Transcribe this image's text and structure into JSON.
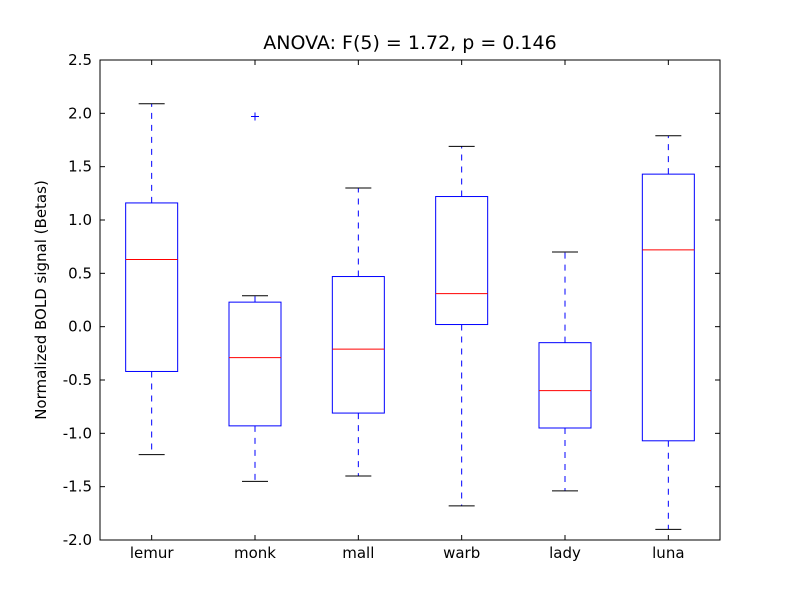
{
  "chart_data": {
    "type": "boxplot",
    "title": "ANOVA: F(5) = 1.72, p = 0.146",
    "xlabel": "",
    "ylabel": "Normalized BOLD signal (Betas)",
    "ylim": [
      -2.0,
      2.5
    ],
    "yticks": [
      "-2.0",
      "-1.5",
      "-1.0",
      "-0.5",
      "0.0",
      "0.5",
      "1.0",
      "1.5",
      "2.0",
      "2.5"
    ],
    "grid": false,
    "categories": [
      "lemur",
      "monk",
      "mall",
      "warb",
      "lady",
      "luna"
    ],
    "boxes": [
      {
        "whislo": -1.2,
        "q1": -0.42,
        "med": 0.63,
        "q3": 1.16,
        "whishi": 2.09,
        "fliers": []
      },
      {
        "whislo": -1.45,
        "q1": -0.93,
        "med": -0.29,
        "q3": 0.23,
        "whishi": 0.29,
        "fliers": [
          1.97
        ]
      },
      {
        "whislo": -1.4,
        "q1": -0.81,
        "med": -0.21,
        "q3": 0.47,
        "whishi": 1.3,
        "fliers": []
      },
      {
        "whislo": -1.68,
        "q1": 0.02,
        "med": 0.31,
        "q3": 1.22,
        "whishi": 1.69,
        "fliers": []
      },
      {
        "whislo": -1.54,
        "q1": -0.95,
        "med": -0.6,
        "q3": -0.15,
        "whishi": 0.7,
        "fliers": []
      },
      {
        "whislo": -1.9,
        "q1": -1.07,
        "med": 0.72,
        "q3": 1.43,
        "whishi": 1.79,
        "fliers": []
      }
    ],
    "colors": {
      "box": "#0000ff",
      "median": "#ff0000",
      "caps": "#000000",
      "flier": "#0000ff"
    }
  }
}
